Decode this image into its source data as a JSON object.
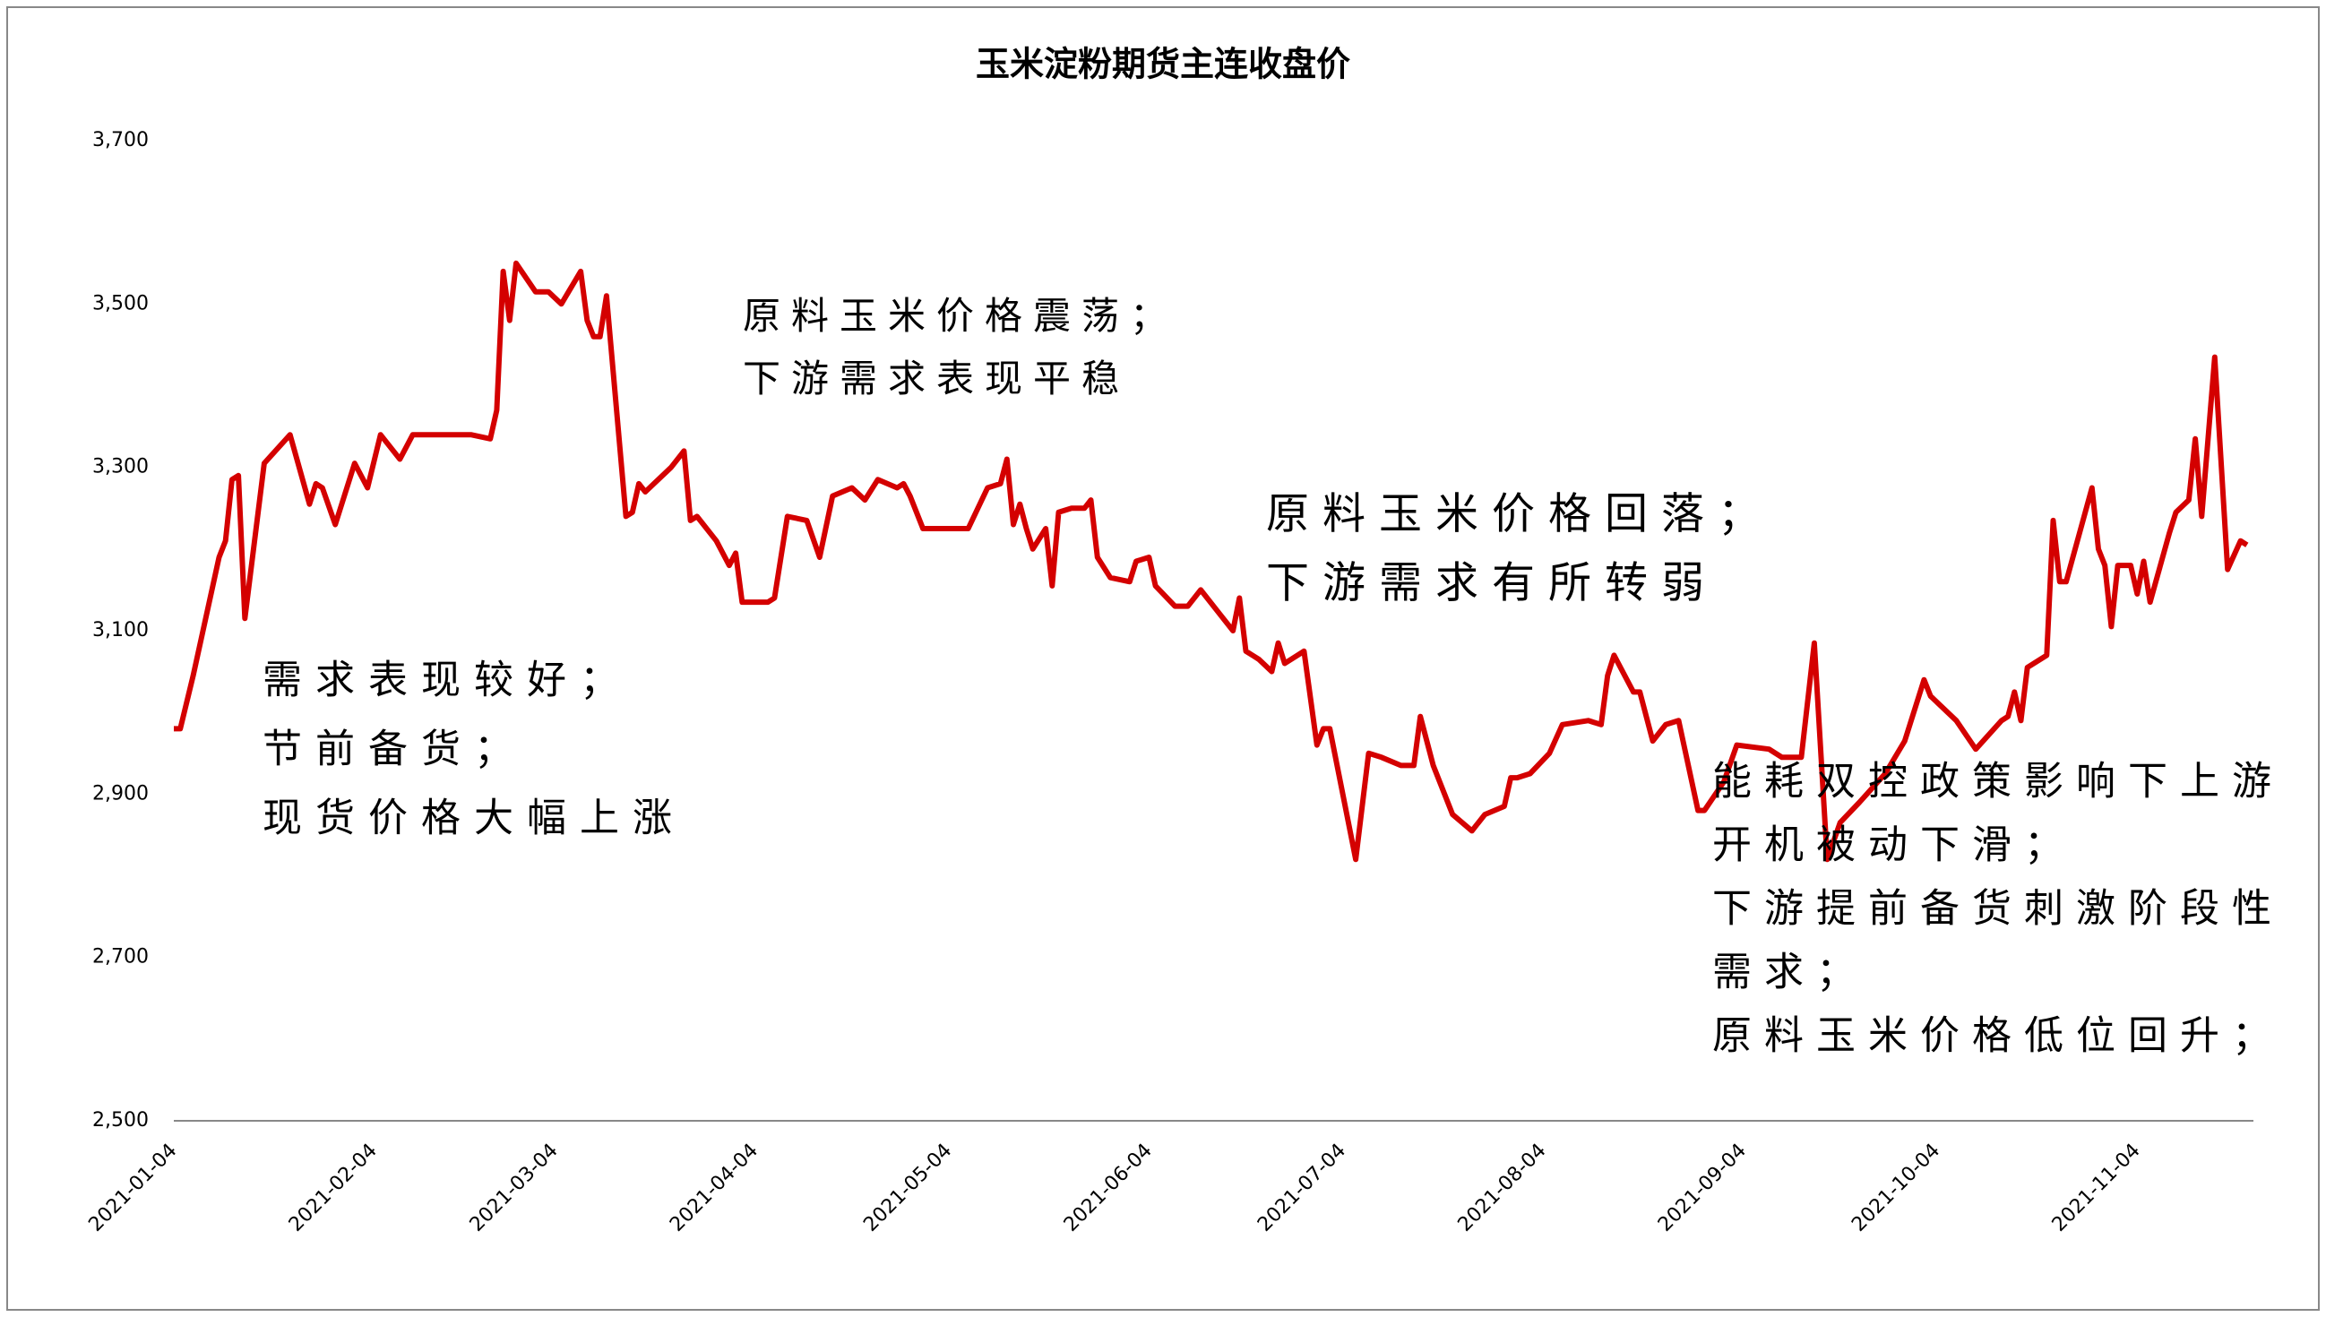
{
  "chart_data": {
    "type": "line",
    "title": "玉米淀粉期货主连收盘价",
    "x": [
      "2021-01-04",
      "2021-01-05",
      "2021-01-07",
      "2021-01-11",
      "2021-01-12",
      "2021-01-13",
      "2021-01-14",
      "2021-01-15",
      "2021-01-18",
      "2021-01-22",
      "2021-01-25",
      "2021-01-26",
      "2021-01-27",
      "2021-01-29",
      "2021-02-01",
      "2021-02-03",
      "2021-02-05",
      "2021-02-08",
      "2021-02-10",
      "2021-02-19",
      "2021-02-22",
      "2021-02-23",
      "2021-02-24",
      "2021-02-25",
      "2021-02-26",
      "2021-03-01",
      "2021-03-03",
      "2021-03-05",
      "2021-03-08",
      "2021-03-09",
      "2021-03-10",
      "2021-03-11",
      "2021-03-12",
      "2021-03-15",
      "2021-03-16",
      "2021-03-17",
      "2021-03-18",
      "2021-03-22",
      "2021-03-24",
      "2021-03-25",
      "2021-03-26",
      "2021-03-29",
      "2021-03-31",
      "2021-04-01",
      "2021-04-02",
      "2021-04-06",
      "2021-04-07",
      "2021-04-09",
      "2021-04-12",
      "2021-04-14",
      "2021-04-16",
      "2021-04-19",
      "2021-04-21",
      "2021-04-23",
      "2021-04-26",
      "2021-04-27",
      "2021-04-28",
      "2021-04-30",
      "2021-05-07",
      "2021-05-10",
      "2021-05-12",
      "2021-05-13",
      "2021-05-14",
      "2021-05-15",
      "2021-05-16",
      "2021-05-17",
      "2021-05-19",
      "2021-05-20",
      "2021-05-21",
      "2021-05-23",
      "2021-05-25",
      "2021-05-26",
      "2021-05-27",
      "2021-05-29",
      "2021-06-01",
      "2021-06-02",
      "2021-06-04",
      "2021-06-05",
      "2021-06-08",
      "2021-06-10",
      "2021-06-12",
      "2021-06-15",
      "2021-06-17",
      "2021-06-18",
      "2021-06-19",
      "2021-06-21",
      "2021-06-23",
      "2021-06-24",
      "2021-06-25",
      "2021-06-28",
      "2021-06-30",
      "2021-07-01",
      "2021-07-02",
      "2021-07-06",
      "2021-07-08",
      "2021-07-10",
      "2021-07-13",
      "2021-07-15",
      "2021-07-16",
      "2021-07-18",
      "2021-07-21",
      "2021-07-24",
      "2021-07-26",
      "2021-07-29",
      "2021-07-30",
      "2021-07-31",
      "2021-08-02",
      "2021-08-05",
      "2021-08-07",
      "2021-08-11",
      "2021-08-13",
      "2021-08-14",
      "2021-08-15",
      "2021-08-18",
      "2021-08-19",
      "2021-08-21",
      "2021-08-23",
      "2021-08-25",
      "2021-08-28",
      "2021-08-29",
      "2021-09-01",
      "2021-09-03",
      "2021-09-08",
      "2021-09-10",
      "2021-09-13",
      "2021-09-15",
      "2021-09-17",
      "2021-09-19",
      "2021-09-22",
      "2021-09-26",
      "2021-09-29",
      "2021-10-02",
      "2021-10-03",
      "2021-10-07",
      "2021-10-10",
      "2021-10-14",
      "2021-10-15",
      "2021-10-16",
      "2021-10-17",
      "2021-10-18",
      "2021-10-21",
      "2021-10-22",
      "2021-10-23",
      "2021-10-24",
      "2021-10-28",
      "2021-10-29",
      "2021-10-30",
      "2021-10-31",
      "2021-11-01",
      "2021-11-03",
      "2021-11-04",
      "2021-11-05",
      "2021-11-06",
      "2021-11-09",
      "2021-11-10",
      "2021-11-12",
      "2021-11-13",
      "2021-11-14",
      "2021-11-16",
      "2021-11-18",
      "2021-11-20",
      "2021-11-21"
    ],
    "series": [
      {
        "name": "收盘价",
        "color": "#d40000",
        "values": [
          2980,
          2980,
          3045,
          3190,
          3210,
          3285,
          3290,
          3115,
          3305,
          3340,
          3255,
          3280,
          3275,
          3230,
          3305,
          3275,
          3340,
          3310,
          3340,
          3340,
          3335,
          3370,
          3540,
          3480,
          3550,
          3515,
          3515,
          3500,
          3540,
          3480,
          3460,
          3460,
          3510,
          3240,
          3245,
          3280,
          3270,
          3300,
          3320,
          3235,
          3240,
          3210,
          3180,
          3195,
          3135,
          3135,
          3140,
          3240,
          3235,
          3190,
          3265,
          3275,
          3260,
          3285,
          3275,
          3280,
          3265,
          3225,
          3225,
          3275,
          3280,
          3310,
          3230,
          3255,
          3225,
          3200,
          3225,
          3155,
          3245,
          3250,
          3250,
          3260,
          3190,
          3165,
          3160,
          3185,
          3190,
          3155,
          3130,
          3130,
          3150,
          3120,
          3100,
          3140,
          3075,
          3065,
          3050,
          3085,
          3060,
          3075,
          2960,
          2980,
          2980,
          2820,
          2950,
          2945,
          2935,
          2935,
          2995,
          2935,
          2875,
          2855,
          2875,
          2885,
          2920,
          2920,
          2925,
          2950,
          2985,
          2990,
          2985,
          3045,
          3070,
          3025,
          3025,
          2965,
          2985,
          2990,
          2880,
          2880,
          2915,
          2960,
          2955,
          2945,
          2945,
          3085,
          2820,
          2865,
          2890,
          2925,
          2965,
          3040,
          3020,
          2990,
          2955,
          2990,
          2995,
          3025,
          2990,
          3055,
          3070,
          3235,
          3160,
          3160,
          3275,
          3200,
          3180,
          3105,
          3180,
          3180,
          3145,
          3185,
          3135,
          3220,
          3245,
          3260,
          3335,
          3240,
          3435,
          3175,
          3210,
          3205
        ]
      }
    ],
    "xlim": [
      "2021-01-04",
      "2021-11-22"
    ],
    "xticks": [
      "2021-01-04",
      "2021-02-04",
      "2021-03-04",
      "2021-04-04",
      "2021-05-04",
      "2021-06-04",
      "2021-07-04",
      "2021-08-04",
      "2021-09-04",
      "2021-10-04",
      "2021-11-04"
    ],
    "ylim": [
      2500,
      3700
    ],
    "yticks": [
      {
        "value": 2500,
        "label": "2,500"
      },
      {
        "value": 2700,
        "label": "2,700"
      },
      {
        "value": 2900,
        "label": "2,900"
      },
      {
        "value": 3100,
        "label": "3,100"
      },
      {
        "value": 3300,
        "label": "3,300"
      },
      {
        "value": 3500,
        "label": "3,500"
      },
      {
        "value": 3700,
        "label": "3,700"
      }
    ],
    "grid": false,
    "annotations": [
      [
        "需求表现较好；",
        "节前备货；",
        "现货价格大幅上涨"
      ],
      [
        "原料玉米价格震荡；",
        "下游需求表现平稳"
      ],
      [
        "原料玉米价格回落；",
        "下游需求有所转弱"
      ],
      [
        "能耗双控政策影响下上游",
        "开机被动下滑；",
        "下游提前备货刺激阶段性",
        "需求；",
        "原料玉米价格低位回升；"
      ]
    ]
  }
}
